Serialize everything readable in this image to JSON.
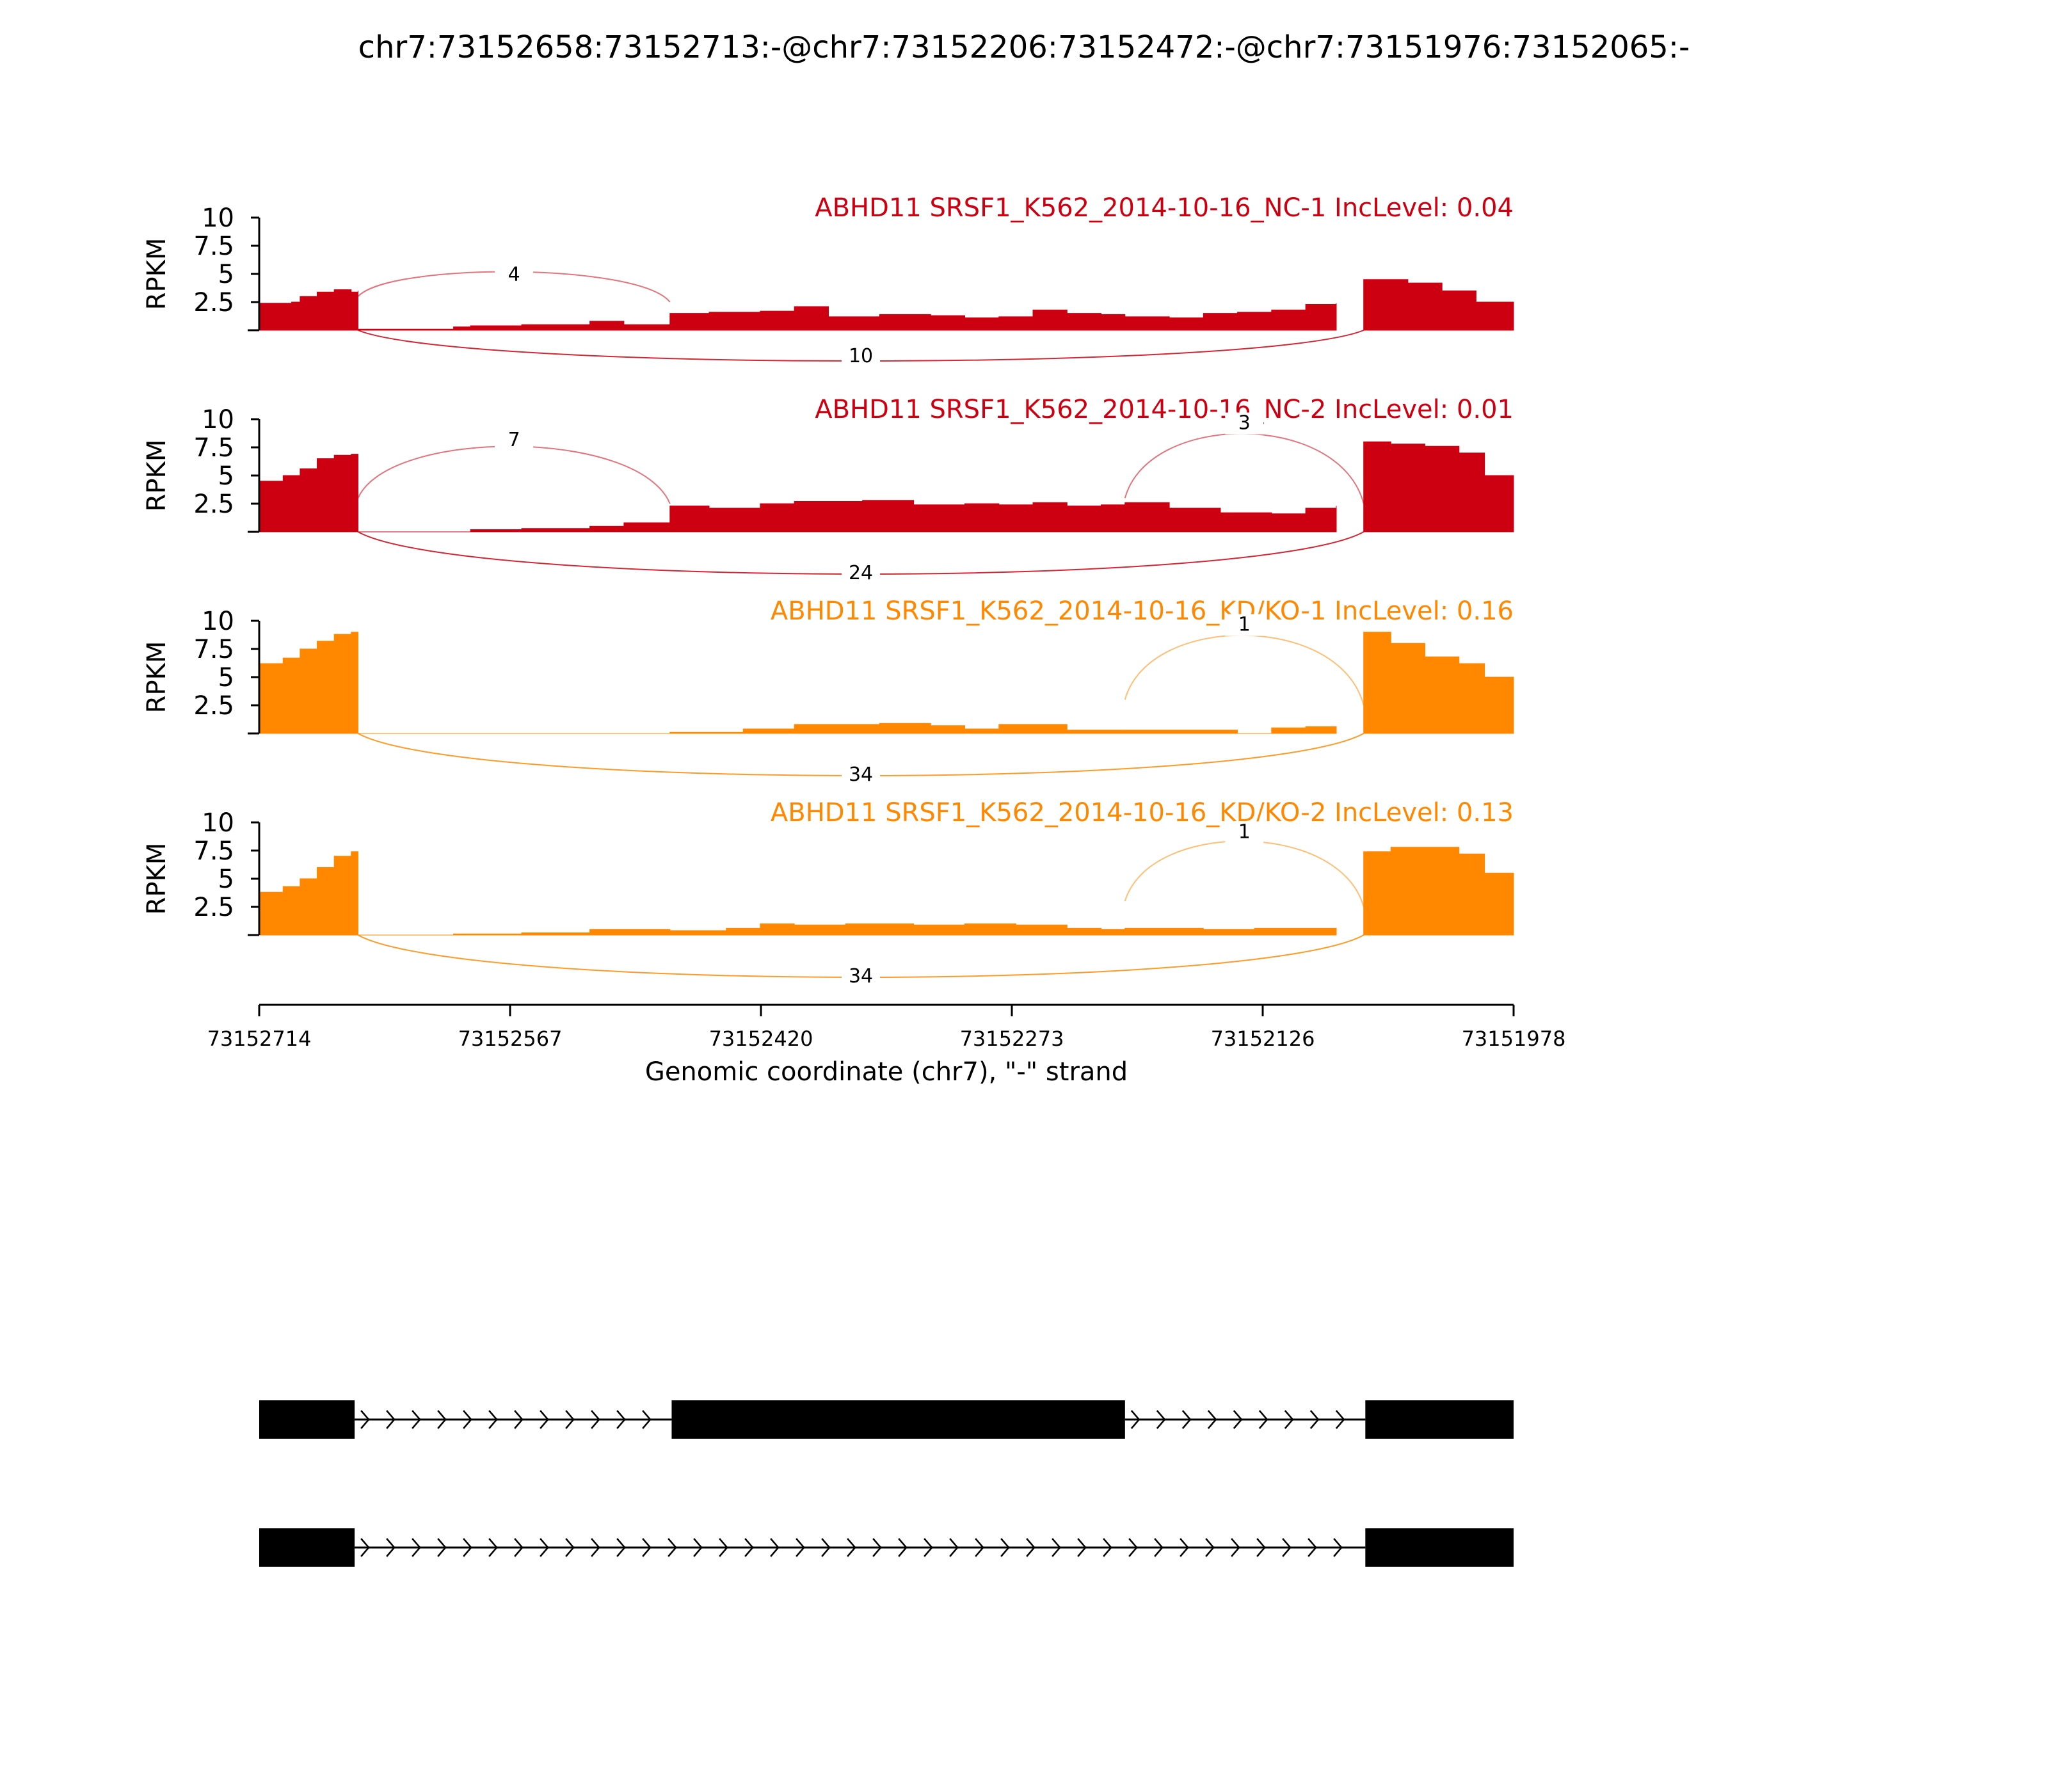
{
  "chart_data": {
    "type": "area",
    "title": "chr7:73152658:73152713:-@chr7:73152206:73152472:-@chr7:73151976:73152065:-",
    "xlabel": "Genomic coordinate (chr7), \"-\" strand",
    "ylabel": "RPKM",
    "x_range": [
      73152714,
      73151978
    ],
    "x_ticks": [
      "73152714",
      "73152567",
      "73152420",
      "73152273",
      "73152126",
      "73151978"
    ],
    "ylim": [
      0,
      10
    ],
    "y_ticks": [
      "10",
      "7.5",
      "5",
      "2.5"
    ],
    "colors": {
      "NC": "#cc0011",
      "KD": "#ff8800"
    },
    "tracks": [
      {
        "label": "ABHD11 SRSF1_K562_2014-10-16_NC-1 IncLevel: 0.04",
        "color": "#cc0011",
        "exon1": [
          [
            73152714,
            2.4
          ],
          [
            73152695,
            2.5
          ],
          [
            73152690,
            3.0
          ],
          [
            73152680,
            3.4
          ],
          [
            73152670,
            3.6
          ],
          [
            73152660,
            3.4
          ],
          [
            73152656,
            3.5
          ]
        ],
        "intron1": [
          [
            73152656,
            0.1
          ],
          [
            73152600,
            0.3
          ],
          [
            73152590,
            0.4
          ],
          [
            73152560,
            0.5
          ],
          [
            73152520,
            0.8
          ],
          [
            73152500,
            0.5
          ],
          [
            73152473,
            0.6
          ]
        ],
        "exon2": [
          [
            73152473,
            1.5
          ],
          [
            73152450,
            1.6
          ],
          [
            73152420,
            1.7
          ],
          [
            73152400,
            2.1
          ],
          [
            73152380,
            1.2
          ],
          [
            73152350,
            1.4
          ],
          [
            73152320,
            1.3
          ],
          [
            73152300,
            1.1
          ],
          [
            73152280,
            1.2
          ],
          [
            73152260,
            1.8
          ],
          [
            73152240,
            1.5
          ],
          [
            73152220,
            1.4
          ],
          [
            73152206,
            1.3
          ]
        ],
        "intron2": [
          [
            73152206,
            1.2
          ],
          [
            73152180,
            1.1
          ],
          [
            73152160,
            1.5
          ],
          [
            73152140,
            1.6
          ],
          [
            73152120,
            1.8
          ],
          [
            73152100,
            2.3
          ],
          [
            73152082,
            2.4
          ],
          [
            73152082,
            2.3
          ]
        ],
        "exon3": [
          [
            73152066,
            4.5
          ],
          [
            73152040,
            4.2
          ],
          [
            73152020,
            3.5
          ],
          [
            73152000,
            2.5
          ],
          [
            73151978,
            2.0
          ]
        ],
        "junctions": [
          {
            "count": "4",
            "from": 73152656,
            "to": 73152473,
            "side": "top",
            "peak": 4.3
          },
          {
            "count": "10",
            "from": 73152656,
            "to": 73152066,
            "side": "bottom",
            "peak": -1.5
          }
        ]
      },
      {
        "label": "ABHD11 SRSF1_K562_2014-10-16_NC-2 IncLevel: 0.01",
        "color": "#cc0011",
        "exon1": [
          [
            73152714,
            4.5
          ],
          [
            73152700,
            5.0
          ],
          [
            73152690,
            5.6
          ],
          [
            73152680,
            6.5
          ],
          [
            73152670,
            6.8
          ],
          [
            73152660,
            6.9
          ],
          [
            73152656,
            6.8
          ]
        ],
        "intron1": [
          [
            73152656,
            0.0
          ],
          [
            73152590,
            0.2
          ],
          [
            73152560,
            0.3
          ],
          [
            73152520,
            0.5
          ],
          [
            73152500,
            0.8
          ],
          [
            73152473,
            0.9
          ]
        ],
        "exon2": [
          [
            73152473,
            2.3
          ],
          [
            73152450,
            2.1
          ],
          [
            73152420,
            2.5
          ],
          [
            73152400,
            2.7
          ],
          [
            73152360,
            2.8
          ],
          [
            73152330,
            2.4
          ],
          [
            73152300,
            2.5
          ],
          [
            73152280,
            2.4
          ],
          [
            73152260,
            2.6
          ],
          [
            73152240,
            2.3
          ],
          [
            73152220,
            2.4
          ],
          [
            73152206,
            2.5
          ]
        ],
        "intron2": [
          [
            73152206,
            2.6
          ],
          [
            73152180,
            2.1
          ],
          [
            73152150,
            1.7
          ],
          [
            73152120,
            1.6
          ],
          [
            73152100,
            2.1
          ],
          [
            73152082,
            2.3
          ]
        ],
        "exon3": [
          [
            73152066,
            8.0
          ],
          [
            73152050,
            7.8
          ],
          [
            73152030,
            7.6
          ],
          [
            73152010,
            7.0
          ],
          [
            73151995,
            5.0
          ],
          [
            73151978,
            4.0
          ]
        ],
        "junctions": [
          {
            "count": "7",
            "from": 73152656,
            "to": 73152473,
            "side": "top",
            "peak": 7.5
          },
          {
            "count": "3",
            "from": 73152206,
            "to": 73152066,
            "side": "top",
            "peak": 9.0
          },
          {
            "count": "24",
            "from": 73152656,
            "to": 73152066,
            "side": "bottom",
            "peak": -2.5
          }
        ]
      },
      {
        "label": "ABHD11 SRSF1_K562_2014-10-16_KD/KO-1 IncLevel: 0.16",
        "color": "#ff8800",
        "exon1": [
          [
            73152714,
            6.2
          ],
          [
            73152700,
            6.7
          ],
          [
            73152690,
            7.5
          ],
          [
            73152680,
            8.2
          ],
          [
            73152670,
            8.8
          ],
          [
            73152660,
            9.0
          ],
          [
            73152656,
            9.0
          ]
        ],
        "intron1": [
          [
            73152656,
            0.0
          ],
          [
            73152500,
            0.0
          ],
          [
            73152473,
            0.0
          ]
        ],
        "exon2": [
          [
            73152473,
            0.1
          ],
          [
            73152430,
            0.4
          ],
          [
            73152400,
            0.8
          ],
          [
            73152350,
            0.9
          ],
          [
            73152320,
            0.7
          ],
          [
            73152300,
            0.4
          ],
          [
            73152280,
            0.8
          ],
          [
            73152260,
            0.8
          ],
          [
            73152240,
            0.3
          ],
          [
            73152206,
            0.3
          ]
        ],
        "intron2": [
          [
            73152206,
            0.3
          ],
          [
            73152160,
            0.3
          ],
          [
            73152140,
            0.0
          ],
          [
            73152120,
            0.5
          ],
          [
            73152100,
            0.6
          ],
          [
            73152082,
            0.6
          ]
        ],
        "exon3": [
          [
            73152066,
            9.0
          ],
          [
            73152050,
            8.0
          ],
          [
            73152030,
            6.8
          ],
          [
            73152010,
            6.2
          ],
          [
            73151995,
            5.0
          ],
          [
            73151978,
            4.2
          ]
        ],
        "junctions": [
          {
            "count": "1",
            "from": 73152206,
            "to": 73152066,
            "side": "top",
            "peak": 9.0
          },
          {
            "count": "34",
            "from": 73152656,
            "to": 73152066,
            "side": "bottom",
            "peak": -2.5
          }
        ]
      },
      {
        "label": "ABHD11 SRSF1_K562_2014-10-16_KD/KO-2 IncLevel: 0.13",
        "color": "#ff8800",
        "exon1": [
          [
            73152714,
            3.8
          ],
          [
            73152700,
            4.3
          ],
          [
            73152690,
            5.0
          ],
          [
            73152680,
            6.0
          ],
          [
            73152670,
            7.0
          ],
          [
            73152660,
            7.4
          ],
          [
            73152656,
            7.3
          ]
        ],
        "intron1": [
          [
            73152656,
            0.0
          ],
          [
            73152600,
            0.1
          ],
          [
            73152560,
            0.2
          ],
          [
            73152520,
            0.5
          ],
          [
            73152500,
            0.5
          ],
          [
            73152473,
            0.5
          ]
        ],
        "exon2": [
          [
            73152473,
            0.4
          ],
          [
            73152440,
            0.6
          ],
          [
            73152420,
            1.0
          ],
          [
            73152400,
            0.9
          ],
          [
            73152370,
            1.0
          ],
          [
            73152330,
            0.9
          ],
          [
            73152300,
            1.0
          ],
          [
            73152270,
            0.9
          ],
          [
            73152240,
            0.6
          ],
          [
            73152220,
            0.5
          ],
          [
            73152206,
            0.5
          ]
        ],
        "intron2": [
          [
            73152206,
            0.6
          ],
          [
            73152160,
            0.5
          ],
          [
            73152130,
            0.6
          ],
          [
            73152100,
            0.6
          ],
          [
            73152082,
            0.5
          ]
        ],
        "exon3": [
          [
            73152066,
            7.4
          ],
          [
            73152050,
            7.8
          ],
          [
            73152030,
            7.8
          ],
          [
            73152010,
            7.2
          ],
          [
            73151995,
            5.5
          ],
          [
            73151978,
            4.5
          ]
        ],
        "junctions": [
          {
            "count": "1",
            "from": 73152206,
            "to": 73152066,
            "side": "top",
            "peak": 8.5
          },
          {
            "count": "34",
            "from": 73152656,
            "to": 73152066,
            "side": "bottom",
            "peak": -2.5
          }
        ]
      }
    ],
    "isoforms": [
      {
        "exons": [
          [
            73152714,
            73152658
          ],
          [
            73152472,
            73152206
          ],
          [
            73152065,
            73151978
          ]
        ]
      },
      {
        "exons": [
          [
            73152714,
            73152658
          ],
          [
            73152065,
            73151978
          ]
        ]
      }
    ]
  }
}
